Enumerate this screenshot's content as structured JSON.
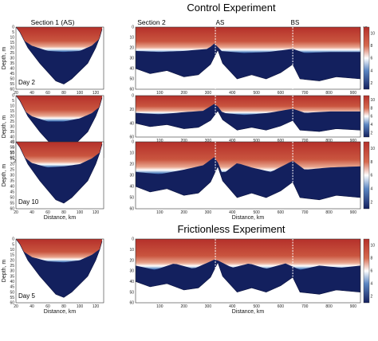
{
  "titles": {
    "control": "Control Experiment",
    "frictionless": "Frictionless Experiment"
  },
  "section_labels": {
    "section1": "Section 1 (AS)",
    "section2": "Section 2"
  },
  "markers": [
    "AS",
    "BS"
  ],
  "units": "°C",
  "colors": {
    "warm": "#b5302a",
    "warm_light": "#e9a68f",
    "cold": "#13205e",
    "cold_mid": "#2a5aa6",
    "white": "#ffffff"
  },
  "chart_data": [
    {
      "type": "heatmap",
      "panel": "control-day2-section1",
      "day_label": "Day 2",
      "ylabel": "Depth, m",
      "xlabel": "",
      "x_ticks": [
        20,
        40,
        60,
        80,
        100,
        120
      ],
      "y_ticks": [
        0,
        5,
        10,
        15,
        20,
        25,
        30,
        35,
        40,
        45,
        50,
        55,
        60
      ],
      "xlim": [
        20,
        130
      ],
      "ylim": [
        0,
        60
      ],
      "bottom_depth": [
        [
          20,
          0
        ],
        [
          25,
          5
        ],
        [
          35,
          20
        ],
        [
          50,
          35
        ],
        [
          70,
          52
        ],
        [
          80,
          55
        ],
        [
          90,
          50
        ],
        [
          110,
          35
        ],
        [
          120,
          20
        ],
        [
          125,
          10
        ],
        [
          128,
          2
        ]
      ],
      "thermocline_depth": [
        [
          20,
          5
        ],
        [
          40,
          15
        ],
        [
          60,
          20
        ],
        [
          80,
          21
        ],
        [
          100,
          20
        ],
        [
          115,
          15
        ],
        [
          128,
          6
        ]
      ],
      "colorbar_ticks": []
    },
    {
      "type": "heatmap",
      "panel": "control-day2-section2",
      "xlabel": "",
      "x_ticks": [
        100,
        200,
        300,
        400,
        500,
        600,
        700,
        800,
        900
      ],
      "y_ticks": [
        0,
        10,
        20,
        30,
        40,
        50,
        60
      ],
      "xlim": [
        0,
        930
      ],
      "ylim": [
        0,
        60
      ],
      "bottom_depth": [
        [
          0,
          40
        ],
        [
          60,
          45
        ],
        [
          130,
          42
        ],
        [
          200,
          48
        ],
        [
          260,
          46
        ],
        [
          310,
          36
        ],
        [
          340,
          22
        ],
        [
          360,
          35
        ],
        [
          420,
          50
        ],
        [
          480,
          46
        ],
        [
          540,
          50
        ],
        [
          600,
          44
        ],
        [
          650,
          36
        ],
        [
          680,
          50
        ],
        [
          760,
          52
        ],
        [
          830,
          48
        ],
        [
          930,
          50
        ]
      ],
      "thermocline_depth": [
        [
          0,
          20
        ],
        [
          100,
          21
        ],
        [
          200,
          20
        ],
        [
          300,
          18
        ],
        [
          330,
          12
        ],
        [
          350,
          20
        ],
        [
          450,
          22
        ],
        [
          550,
          21
        ],
        [
          650,
          18
        ],
        [
          700,
          22
        ],
        [
          800,
          21
        ],
        [
          930,
          21
        ]
      ],
      "markers_x": [
        330,
        650
      ],
      "colorbar_ticks": [
        "10",
        "8",
        "6",
        "4",
        "2"
      ],
      "colorbar_unit": "°C"
    },
    {
      "type": "heatmap",
      "panel": "control-day5-section1",
      "day_label": "Day 5",
      "ylabel": "Depth, m",
      "xlabel": "",
      "x_ticks": [
        20,
        40,
        60,
        80,
        100,
        120
      ],
      "y_ticks": [
        0,
        5,
        10,
        15,
        20,
        25,
        30,
        35,
        40,
        45,
        50,
        55,
        60
      ],
      "xlim": [
        20,
        130
      ],
      "ylim": [
        0,
        60
      ],
      "bottom_depth": [
        [
          20,
          0
        ],
        [
          25,
          5
        ],
        [
          35,
          20
        ],
        [
          50,
          35
        ],
        [
          70,
          52
        ],
        [
          80,
          55
        ],
        [
          90,
          50
        ],
        [
          110,
          35
        ],
        [
          120,
          20
        ],
        [
          125,
          10
        ],
        [
          128,
          2
        ]
      ],
      "thermocline_depth": [
        [
          20,
          6
        ],
        [
          40,
          17
        ],
        [
          60,
          22
        ],
        [
          80,
          22
        ],
        [
          100,
          19
        ],
        [
          115,
          14
        ],
        [
          128,
          6
        ]
      ],
      "colorbar_ticks": []
    },
    {
      "type": "heatmap",
      "panel": "control-day5-section2",
      "xlabel": "",
      "x_ticks": [
        100,
        200,
        300,
        400,
        500,
        600,
        700,
        800,
        900
      ],
      "y_ticks": [
        0,
        10,
        20,
        30,
        40,
        50,
        60
      ],
      "xlim": [
        0,
        930
      ],
      "ylim": [
        0,
        60
      ],
      "bottom_depth": [
        [
          0,
          40
        ],
        [
          60,
          45
        ],
        [
          130,
          42
        ],
        [
          200,
          48
        ],
        [
          260,
          46
        ],
        [
          310,
          36
        ],
        [
          340,
          22
        ],
        [
          360,
          35
        ],
        [
          420,
          50
        ],
        [
          480,
          46
        ],
        [
          540,
          50
        ],
        [
          600,
          44
        ],
        [
          650,
          36
        ],
        [
          680,
          50
        ],
        [
          760,
          52
        ],
        [
          830,
          48
        ],
        [
          930,
          50
        ]
      ],
      "thermocline_depth": [
        [
          0,
          22
        ],
        [
          100,
          24
        ],
        [
          200,
          21
        ],
        [
          280,
          19
        ],
        [
          330,
          8
        ],
        [
          360,
          22
        ],
        [
          450,
          25
        ],
        [
          550,
          22
        ],
        [
          650,
          16
        ],
        [
          700,
          22
        ],
        [
          800,
          20
        ],
        [
          930,
          20
        ]
      ],
      "markers_x": [
        330,
        650
      ],
      "colorbar_ticks": [
        "10",
        "8",
        "6",
        "4",
        "2"
      ]
    },
    {
      "type": "heatmap",
      "panel": "control-day10-section1",
      "day_label": "Day 10",
      "ylabel": "Depth, m",
      "xlabel": "Distance, km",
      "x_ticks": [
        20,
        40,
        60,
        80,
        100,
        120
      ],
      "y_ticks": [
        0,
        5,
        10,
        15,
        20,
        25,
        30,
        35,
        40,
        45,
        50,
        55,
        60
      ],
      "xlim": [
        20,
        130
      ],
      "ylim": [
        0,
        60
      ],
      "bottom_depth": [
        [
          20,
          0
        ],
        [
          25,
          5
        ],
        [
          35,
          20
        ],
        [
          50,
          35
        ],
        [
          70,
          52
        ],
        [
          80,
          55
        ],
        [
          90,
          50
        ],
        [
          110,
          35
        ],
        [
          120,
          20
        ],
        [
          125,
          10
        ],
        [
          128,
          2
        ]
      ],
      "thermocline_depth": [
        [
          20,
          5
        ],
        [
          40,
          16
        ],
        [
          60,
          20
        ],
        [
          80,
          19
        ],
        [
          100,
          17
        ],
        [
          115,
          12
        ],
        [
          128,
          5
        ]
      ],
      "colorbar_ticks": []
    },
    {
      "type": "heatmap",
      "panel": "control-day10-section2",
      "xlabel": "Distance, km",
      "x_ticks": [
        100,
        200,
        300,
        400,
        500,
        600,
        700,
        800,
        900
      ],
      "y_ticks": [
        0,
        10,
        20,
        30,
        40,
        50,
        60
      ],
      "xlim": [
        0,
        930
      ],
      "ylim": [
        0,
        60
      ],
      "bottom_depth": [
        [
          0,
          40
        ],
        [
          60,
          45
        ],
        [
          130,
          42
        ],
        [
          200,
          48
        ],
        [
          260,
          46
        ],
        [
          310,
          36
        ],
        [
          340,
          22
        ],
        [
          360,
          35
        ],
        [
          420,
          50
        ],
        [
          480,
          46
        ],
        [
          540,
          50
        ],
        [
          600,
          44
        ],
        [
          650,
          36
        ],
        [
          680,
          50
        ],
        [
          760,
          52
        ],
        [
          830,
          48
        ],
        [
          930,
          50
        ]
      ],
      "thermocline_depth": [
        [
          0,
          24
        ],
        [
          100,
          26
        ],
        [
          200,
          22
        ],
        [
          280,
          18
        ],
        [
          330,
          10
        ],
        [
          360,
          26
        ],
        [
          420,
          16
        ],
        [
          480,
          20
        ],
        [
          560,
          24
        ],
        [
          650,
          14
        ],
        [
          700,
          22
        ],
        [
          800,
          20
        ],
        [
          930,
          19
        ]
      ],
      "markers_x": [
        330,
        650
      ],
      "colorbar_ticks": [
        "10",
        "8",
        "6",
        "4",
        "2"
      ]
    },
    {
      "type": "heatmap",
      "panel": "frictionless-day5-section1",
      "day_label": "Day 5",
      "ylabel": "Depth, m",
      "xlabel": "Distance, km",
      "x_ticks": [
        20,
        40,
        60,
        80,
        100,
        120
      ],
      "y_ticks": [
        0,
        5,
        10,
        15,
        20,
        25,
        30,
        35,
        40,
        45,
        50,
        55,
        60
      ],
      "xlim": [
        20,
        130
      ],
      "ylim": [
        0,
        60
      ],
      "bottom_depth": [
        [
          20,
          0
        ],
        [
          25,
          5
        ],
        [
          35,
          20
        ],
        [
          50,
          35
        ],
        [
          70,
          52
        ],
        [
          80,
          55
        ],
        [
          90,
          50
        ],
        [
          110,
          35
        ],
        [
          120,
          20
        ],
        [
          125,
          10
        ],
        [
          128,
          2
        ]
      ],
      "thermocline_depth": [
        [
          20,
          4
        ],
        [
          40,
          14
        ],
        [
          60,
          18
        ],
        [
          80,
          19
        ],
        [
          100,
          17
        ],
        [
          115,
          12
        ],
        [
          128,
          5
        ]
      ],
      "colorbar_ticks": []
    },
    {
      "type": "heatmap",
      "panel": "frictionless-day5-section2",
      "xlabel": "Distance, km",
      "x_ticks": [
        100,
        200,
        300,
        400,
        500,
        600,
        700,
        800,
        900
      ],
      "y_ticks": [
        0,
        10,
        20,
        30,
        40,
        50,
        60
      ],
      "xlim": [
        0,
        930
      ],
      "ylim": [
        0,
        60
      ],
      "bottom_depth": [
        [
          0,
          40
        ],
        [
          60,
          45
        ],
        [
          130,
          42
        ],
        [
          200,
          48
        ],
        [
          260,
          46
        ],
        [
          310,
          36
        ],
        [
          340,
          22
        ],
        [
          360,
          35
        ],
        [
          420,
          50
        ],
        [
          480,
          46
        ],
        [
          540,
          50
        ],
        [
          600,
          44
        ],
        [
          650,
          36
        ],
        [
          680,
          50
        ],
        [
          760,
          52
        ],
        [
          830,
          48
        ],
        [
          930,
          50
        ]
      ],
      "thermocline_depth": [
        [
          0,
          22
        ],
        [
          80,
          26
        ],
        [
          160,
          20
        ],
        [
          240,
          25
        ],
        [
          330,
          16
        ],
        [
          400,
          24
        ],
        [
          470,
          20
        ],
        [
          540,
          25
        ],
        [
          620,
          20
        ],
        [
          680,
          26
        ],
        [
          760,
          22
        ],
        [
          850,
          24
        ],
        [
          930,
          22
        ]
      ],
      "markers_x": [
        330,
        650
      ],
      "colorbar_ticks": [
        "10",
        "8",
        "6",
        "4",
        "2"
      ]
    }
  ]
}
